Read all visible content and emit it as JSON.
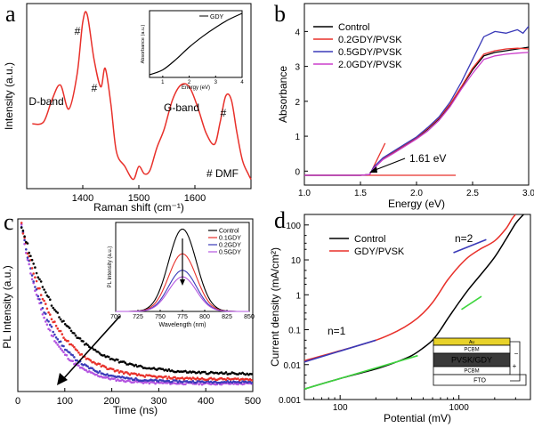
{
  "chart_data": [
    {
      "panel": "a",
      "type": "line",
      "xlabel": "Raman shift (cm⁻¹)",
      "ylabel": "Intensity (a.u.)",
      "xlim": [
        1300,
        1700
      ],
      "xticks": [
        1400,
        1500,
        1600
      ],
      "series": [
        {
          "color": "#e8302a",
          "x": [
            1310,
            1330,
            1345,
            1360,
            1375,
            1390,
            1400,
            1408,
            1420,
            1432,
            1440,
            1450,
            1460,
            1475,
            1490,
            1500,
            1510,
            1520,
            1532,
            1545,
            1560,
            1575,
            1590,
            1605,
            1620,
            1635,
            1645,
            1655,
            1665,
            1675,
            1685,
            1695,
            1700
          ],
          "y": [
            0.35,
            0.36,
            0.48,
            0.56,
            0.43,
            0.62,
            0.9,
            0.94,
            0.7,
            0.55,
            0.65,
            0.46,
            0.2,
            0.12,
            0.05,
            0.12,
            0.08,
            0.1,
            0.22,
            0.32,
            0.48,
            0.56,
            0.55,
            0.44,
            0.3,
            0.24,
            0.36,
            0.5,
            0.48,
            0.3,
            0.15,
            0.08,
            0.05
          ]
        }
      ],
      "annotations": [
        "D-band",
        "#",
        "#",
        "G-band",
        "#",
        "# DMF"
      ],
      "inset": {
        "type": "line",
        "xlabel": "Energy (eV)",
        "ylabel": "Absorbance (a.u.)",
        "xlim": [
          0.5,
          4
        ],
        "xticks": [
          1,
          2,
          3,
          4
        ],
        "series": [
          {
            "name": "GDY",
            "color": "#000000",
            "x": [
              0.5,
              1.0,
              1.5,
              2.0,
              2.5,
              3.0,
              3.5,
              4.0
            ],
            "y": [
              0.0,
              0.08,
              0.25,
              0.45,
              0.62,
              0.77,
              0.9,
              1.0
            ]
          }
        ]
      }
    },
    {
      "panel": "b",
      "type": "line",
      "xlabel": "Energy (eV)",
      "ylabel": "Absorbance",
      "xlim": [
        1.0,
        3.0
      ],
      "ylim": [
        -0.4,
        4.8
      ],
      "xticks": [
        "1.0",
        "1.5",
        "2.0",
        "2.5",
        "3.0"
      ],
      "yticks": [
        "0",
        "1",
        "2",
        "3",
        "4"
      ],
      "legend": "top-left",
      "series": [
        {
          "name": "Control",
          "color": "#000000",
          "x": [
            1.0,
            1.5,
            1.58,
            1.62,
            1.7,
            1.8,
            1.9,
            2.0,
            2.1,
            2.2,
            2.3,
            2.4,
            2.5,
            2.6,
            2.7,
            2.8,
            2.9,
            3.0
          ],
          "y": [
            -0.12,
            -0.12,
            -0.1,
            0.1,
            0.35,
            0.55,
            0.75,
            0.95,
            1.2,
            1.5,
            1.9,
            2.4,
            2.9,
            3.3,
            3.4,
            3.45,
            3.5,
            3.55
          ]
        },
        {
          "name": "0.2GDY/PVSK",
          "color": "#e8302a",
          "x": [
            1.0,
            1.5,
            1.58,
            1.62,
            1.7,
            1.8,
            1.9,
            2.0,
            2.1,
            2.2,
            2.3,
            2.4,
            2.5,
            2.6,
            2.7,
            2.8,
            2.9,
            3.0
          ],
          "y": [
            -0.12,
            -0.12,
            -0.1,
            0.1,
            0.36,
            0.56,
            0.76,
            0.96,
            1.22,
            1.52,
            1.92,
            2.42,
            2.95,
            3.35,
            3.45,
            3.5,
            3.52,
            3.5
          ]
        },
        {
          "name": "0.5GDY/PVSK",
          "color": "#3a3ab8",
          "x": [
            1.0,
            1.5,
            1.58,
            1.62,
            1.7,
            1.8,
            1.9,
            2.0,
            2.1,
            2.2,
            2.3,
            2.4,
            2.5,
            2.6,
            2.7,
            2.8,
            2.9,
            2.95,
            3.0
          ],
          "y": [
            -0.12,
            -0.12,
            -0.1,
            0.12,
            0.38,
            0.58,
            0.78,
            0.98,
            1.25,
            1.55,
            1.98,
            2.55,
            3.2,
            3.85,
            4.0,
            3.95,
            4.05,
            3.95,
            4.15
          ]
        },
        {
          "name": "2.0GDY/PVSK",
          "color": "#cc3fcc",
          "x": [
            1.0,
            1.5,
            1.58,
            1.62,
            1.7,
            1.8,
            1.9,
            2.0,
            2.1,
            2.2,
            2.3,
            2.4,
            2.5,
            2.6,
            2.7,
            2.8,
            2.9,
            3.0
          ],
          "y": [
            -0.12,
            -0.12,
            -0.1,
            0.08,
            0.33,
            0.52,
            0.72,
            0.92,
            1.15,
            1.45,
            1.85,
            2.35,
            2.8,
            3.2,
            3.3,
            3.35,
            3.38,
            3.4
          ]
        }
      ],
      "fit_lines": [
        {
          "color": "#e8302a",
          "x": [
            1.58,
            1.72
          ],
          "y": [
            -0.12,
            0.8
          ]
        },
        {
          "color": "#e8302a",
          "x": [
            1.0,
            2.35
          ],
          "y": [
            -0.12,
            -0.12
          ]
        }
      ],
      "annotations": [
        "1.61 eV"
      ]
    },
    {
      "panel": "c",
      "type": "scatter",
      "xlabel": "Time (ns)",
      "ylabel": "PL Intensity (a.u.)",
      "xlim": [
        0,
        500
      ],
      "ylim": [
        0,
        1.0
      ],
      "xticks": [
        0,
        100,
        200,
        300,
        400,
        500
      ],
      "series": [
        {
          "name": "Control",
          "color": "#000000",
          "tau": 85,
          "floor": 0.1
        },
        {
          "name": "0.1GDY",
          "color": "#e8302a",
          "tau": 70,
          "floor": 0.07
        },
        {
          "name": "0.2GDY",
          "color": "#3a3ab8",
          "tau": 60,
          "floor": 0.055
        },
        {
          "name": "0.5GDY",
          "color": "#b455e0",
          "tau": 55,
          "floor": 0.045
        }
      ],
      "inset": {
        "type": "line",
        "xlabel": "Wavelength (nm)",
        "ylabel": "PL Intensity (a.u.)",
        "xlim": [
          700,
          850
        ],
        "xticks": [
          700,
          725,
          750,
          775,
          800,
          825,
          850
        ],
        "legend": "top-right",
        "series": [
          {
            "name": "Control",
            "color": "#000000",
            "peak_nm": 775,
            "peak": 1.0
          },
          {
            "name": "0.1GDY",
            "color": "#e8302a",
            "peak_nm": 775,
            "peak": 0.7
          },
          {
            "name": "0.2GDY",
            "color": "#3a3ab8",
            "peak_nm": 775,
            "peak": 0.5
          },
          {
            "name": "0.5GDY",
            "color": "#b455e0",
            "peak_nm": 775,
            "peak": 0.42
          }
        ]
      }
    },
    {
      "panel": "d",
      "type": "line",
      "xscale": "log",
      "yscale": "log",
      "xlabel": "Potential (mV)",
      "ylabel": "Current density (mA/cm²)",
      "xlim": [
        50,
        4000
      ],
      "ylim": [
        0.001,
        200
      ],
      "xticks": [
        "100",
        "1000"
      ],
      "yticks": [
        "0.001",
        "0.01",
        "0.1",
        "1",
        "10",
        "100"
      ],
      "legend": "top-left",
      "series": [
        {
          "name": "Control",
          "color": "#000000",
          "x": [
            50,
            100,
            200,
            300,
            400,
            500,
            600,
            700,
            800,
            1000,
            1200,
            1500,
            2000,
            2500,
            3000,
            3500
          ],
          "y": [
            0.002,
            0.004,
            0.0075,
            0.012,
            0.018,
            0.03,
            0.05,
            0.1,
            0.2,
            0.6,
            1.4,
            3.5,
            12,
            40,
            110,
            200
          ]
        },
        {
          "name": "GDY/PVSK",
          "color": "#e8302a",
          "x": [
            50,
            100,
            200,
            300,
            400,
            500,
            600,
            700,
            800,
            1000,
            1200,
            1500,
            2000,
            2500,
            2800,
            3000
          ],
          "y": [
            0.013,
            0.025,
            0.05,
            0.09,
            0.16,
            0.3,
            0.6,
            1.3,
            2.6,
            6.5,
            12,
            20,
            35,
            80,
            150,
            200
          ]
        }
      ],
      "fit_lines": [
        {
          "color": "#3a3ab8",
          "x": [
            50,
            200
          ],
          "y": [
            0.012,
            0.05
          ]
        },
        {
          "color": "#3a3ab8",
          "x": [
            900,
            1700
          ],
          "y": [
            16,
            38
          ]
        },
        {
          "color": "#3fd63f",
          "x": [
            50,
            450
          ],
          "y": [
            0.002,
            0.018
          ]
        },
        {
          "color": "#3fd63f",
          "x": [
            1050,
            1550
          ],
          "y": [
            0.38,
            0.9
          ]
        }
      ],
      "annotations": [
        "n=1",
        "n=2"
      ],
      "device_layers": [
        "Au",
        "PCBM",
        "PVSK/GDY",
        "PCBM",
        "FTO"
      ],
      "device_signs": [
        "−",
        "+"
      ]
    }
  ],
  "labels": {
    "panel_a": "a",
    "panel_b": "b",
    "panel_c": "c",
    "panel_d": "d"
  }
}
